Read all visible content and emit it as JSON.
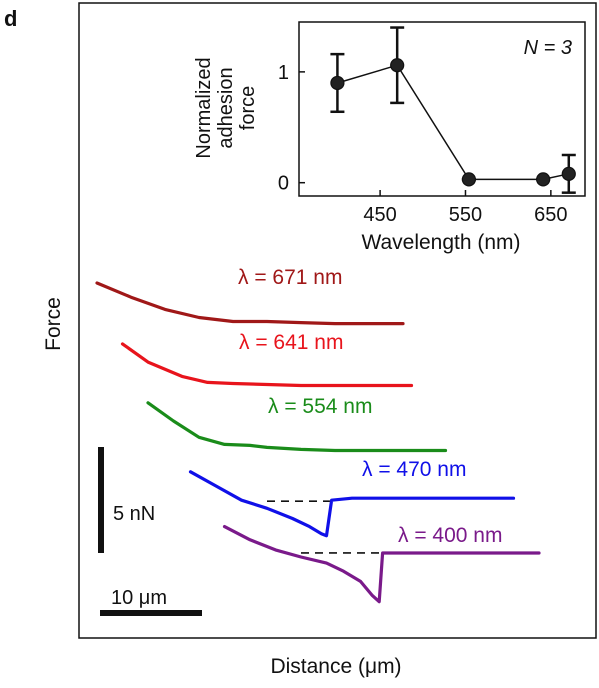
{
  "panel_label": "d",
  "chart_data": [
    {
      "type": "line",
      "description_role": "main",
      "xlabel": "Distance (μm)",
      "ylabel": "Force",
      "scale_bars": {
        "force": "5 nN",
        "distance": "10 μm"
      },
      "series": [
        {
          "name": "λ = 671 nm",
          "color": "#a01818",
          "points": [
            [
              0,
              13.4
            ],
            [
              2,
              12.7
            ],
            [
              4,
              12.1
            ],
            [
              6,
              11.7
            ],
            [
              8,
              11.5
            ],
            [
              10,
              11.5
            ],
            [
              12,
              11.45
            ],
            [
              14,
              11.4
            ],
            [
              16,
              11.4
            ],
            [
              18,
              11.4
            ]
          ]
        },
        {
          "name": "λ = 641 nm",
          "color": "#e8141c",
          "points": [
            [
              1.5,
              10.4
            ],
            [
              3,
              9.5
            ],
            [
              5,
              8.8
            ],
            [
              6.5,
              8.5
            ],
            [
              8,
              8.45
            ],
            [
              10,
              8.4
            ],
            [
              12,
              8.35
            ],
            [
              14,
              8.35
            ],
            [
              16,
              8.35
            ],
            [
              18.5,
              8.35
            ]
          ]
        },
        {
          "name": "λ = 554 nm",
          "color": "#1a8c1a",
          "points": [
            [
              3,
              7.5
            ],
            [
              4.5,
              6.6
            ],
            [
              6,
              5.8
            ],
            [
              7.5,
              5.45
            ],
            [
              9,
              5.4
            ],
            [
              10,
              5.3
            ],
            [
              12,
              5.2
            ],
            [
              14,
              5.15
            ],
            [
              16,
              5.15
            ],
            [
              18,
              5.15
            ],
            [
              20.5,
              5.15
            ]
          ]
        },
        {
          "name": "λ = 470 nm",
          "color": "#1010e8",
          "points": [
            [
              5.5,
              4.1
            ],
            [
              7,
              3.4
            ],
            [
              8.5,
              2.7
            ],
            [
              10,
              2.3
            ],
            [
              11.5,
              1.8
            ],
            [
              12.5,
              1.4
            ],
            [
              13.2,
              1.05
            ],
            [
              13.5,
              0.95
            ],
            [
              13.8,
              2.7
            ],
            [
              15,
              2.8
            ],
            [
              17,
              2.8
            ],
            [
              19,
              2.8
            ],
            [
              21,
              2.8
            ],
            [
              23,
              2.8
            ],
            [
              24.5,
              2.8
            ]
          ]
        },
        {
          "name": "λ = 400 nm",
          "color": "#7a1a8a",
          "points": [
            [
              7.5,
              1.4
            ],
            [
              9,
              0.75
            ],
            [
              10.5,
              0.25
            ],
            [
              12,
              -0.1
            ],
            [
              13.5,
              -0.4
            ],
            [
              14.5,
              -0.8
            ],
            [
              15.5,
              -1.3
            ],
            [
              16.2,
              -2.0
            ],
            [
              16.6,
              -2.3
            ],
            [
              16.8,
              0.1
            ],
            [
              18,
              0.1
            ],
            [
              20,
              0.1
            ],
            [
              22,
              0.1
            ],
            [
              24,
              0.1
            ],
            [
              26,
              0.1
            ]
          ]
        }
      ],
      "baselines": [
        {
          "series": "λ = 470 nm",
          "y": 2.65,
          "x": [
            10,
            13.7
          ]
        },
        {
          "series": "λ = 400 nm",
          "y": 0.1,
          "x": [
            12,
            16.8
          ]
        }
      ]
    },
    {
      "type": "scatter",
      "description_role": "inset",
      "xlabel": "Wavelength (nm)",
      "ylabel": "Normalized adhesion force",
      "annotation": "N = 3",
      "x_ticks": [
        "450",
        "550",
        "650"
      ],
      "y_ticks": [
        "0",
        "1"
      ],
      "xlim": [
        355,
        690
      ],
      "ylim": [
        -0.12,
        1.45
      ],
      "points": [
        {
          "x": 400,
          "y": 0.9,
          "err": 0.26
        },
        {
          "x": 470,
          "y": 1.06,
          "err": 0.34
        },
        {
          "x": 554,
          "y": 0.03,
          "err": 0.0
        },
        {
          "x": 641,
          "y": 0.03,
          "err": 0.0
        },
        {
          "x": 671,
          "y": 0.08,
          "err": 0.17
        }
      ]
    }
  ]
}
